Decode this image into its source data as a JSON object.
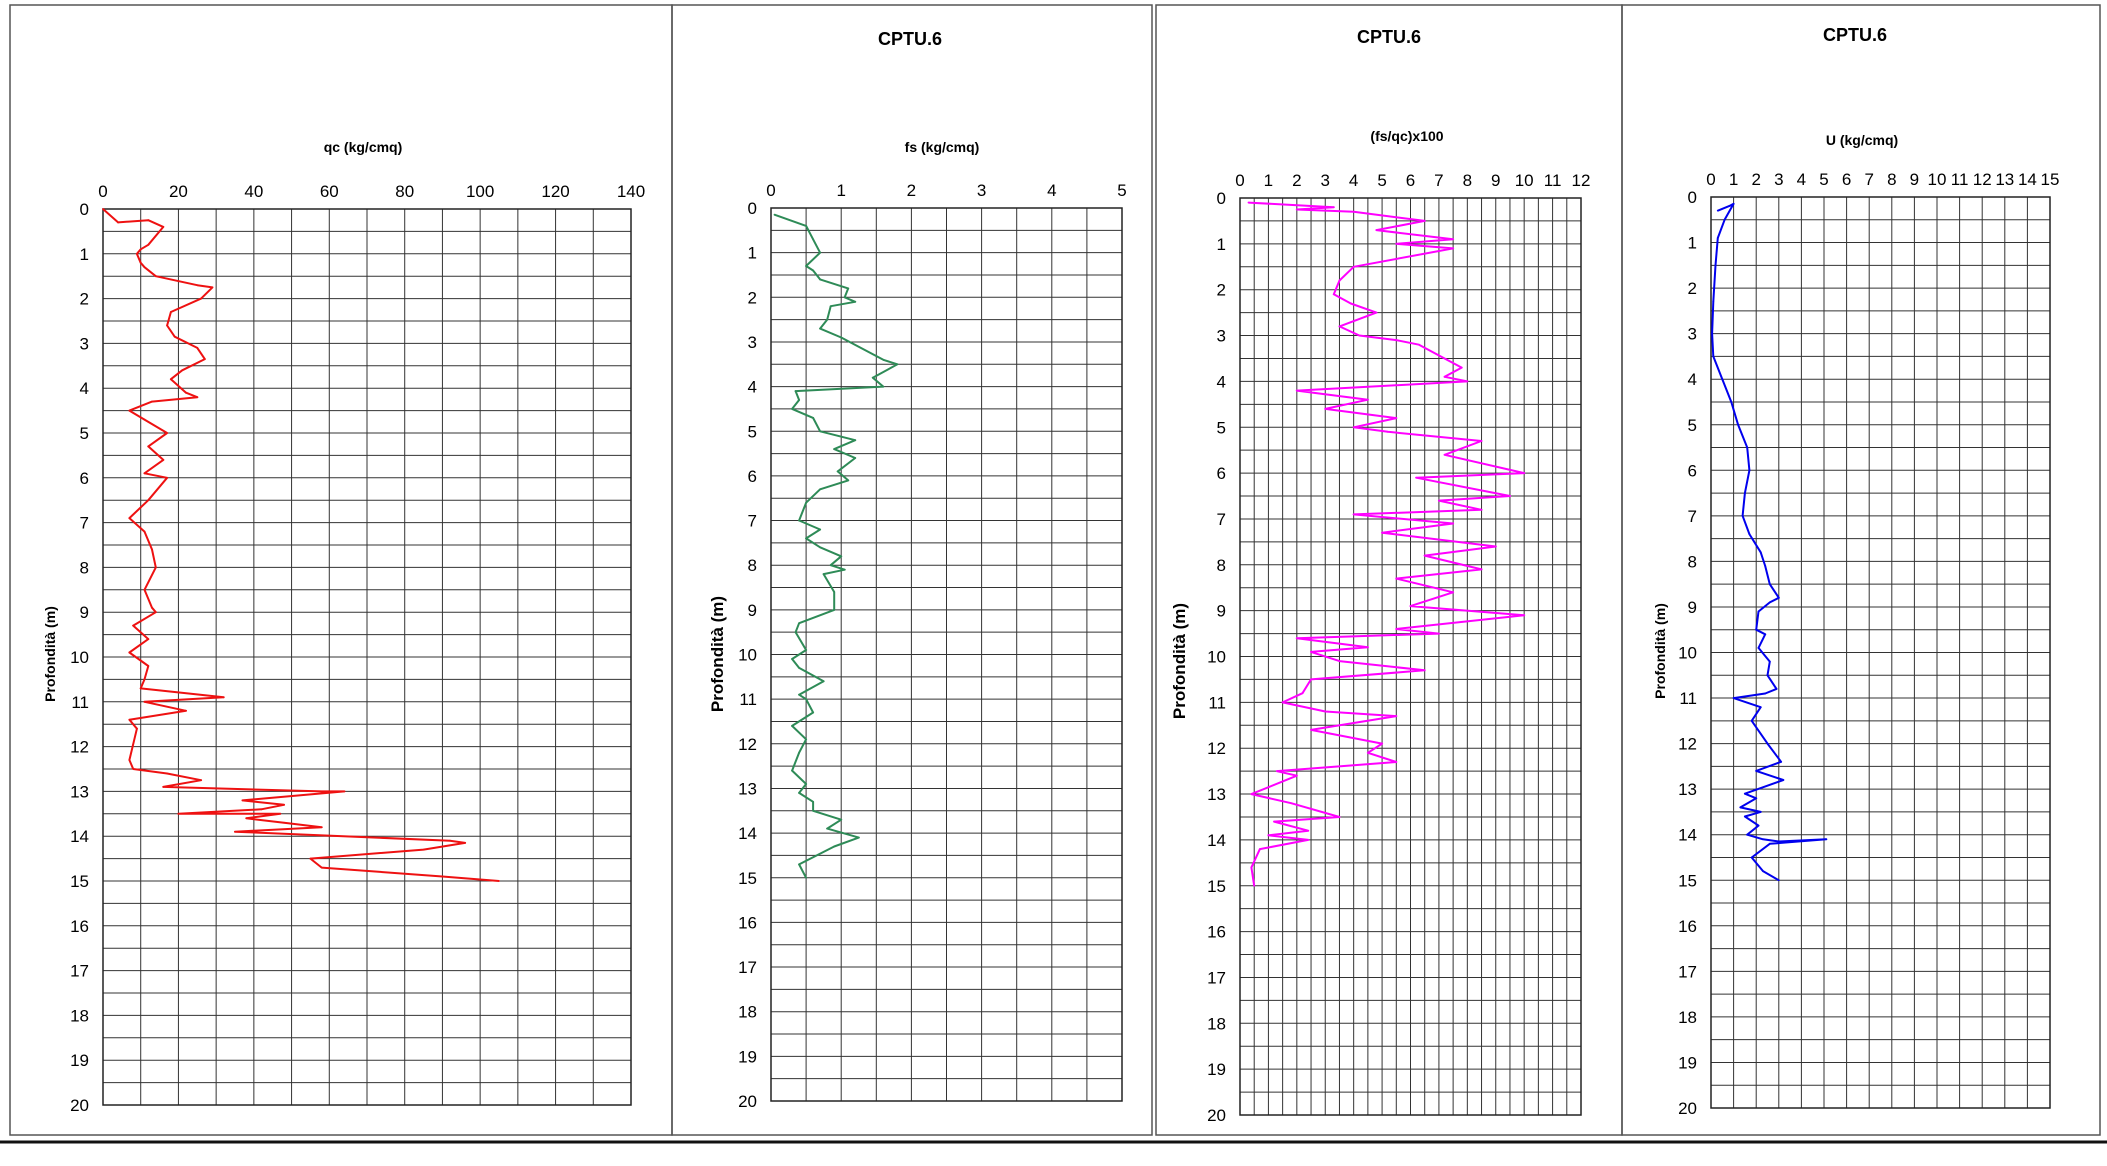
{
  "page_colors": {
    "background": "#ffffff",
    "grid": "#333333"
  },
  "chart_data": [
    {
      "type": "line",
      "title": "",
      "xlabel": "qc (kg/cmq)",
      "ylabel": "Profondità (m)",
      "xlim": [
        0,
        140
      ],
      "ylim": [
        20,
        0
      ],
      "x_ticks": [
        0,
        20,
        40,
        60,
        80,
        100,
        120,
        140
      ],
      "y_ticks": [
        0,
        1,
        2,
        3,
        4,
        5,
        6,
        7,
        8,
        9,
        10,
        11,
        12,
        13,
        14,
        15,
        16,
        17,
        18,
        19,
        20
      ],
      "grid": true,
      "color": "#ee1111",
      "series": [
        {
          "x": [
            0,
            4,
            12,
            16,
            12,
            10,
            9,
            10,
            11,
            14,
            25,
            29,
            26,
            18,
            17,
            19,
            25,
            27,
            21,
            18,
            22,
            25,
            13,
            7,
            11,
            17,
            12,
            16,
            11,
            17,
            12,
            7,
            11,
            13,
            14,
            11,
            13,
            14,
            8,
            12,
            7,
            12,
            11,
            10,
            32,
            11,
            22,
            7,
            9,
            7,
            8,
            17,
            26,
            16,
            58,
            64,
            37,
            48,
            42,
            20,
            47,
            38,
            48,
            58,
            35,
            92,
            96,
            85,
            55,
            58,
            90,
            105
          ],
          "y": [
            0,
            0.3,
            0.25,
            0.4,
            0.8,
            0.9,
            1.0,
            1.2,
            1.3,
            1.5,
            1.7,
            1.75,
            2.0,
            2.3,
            2.6,
            2.85,
            3.1,
            3.35,
            3.6,
            3.8,
            4.1,
            4.2,
            4.3,
            4.5,
            4.7,
            5.0,
            5.3,
            5.6,
            5.9,
            6.0,
            6.5,
            6.9,
            7.2,
            7.6,
            8.0,
            8.5,
            8.9,
            9.0,
            9.3,
            9.6,
            9.9,
            10.2,
            10.5,
            10.7,
            10.9,
            11.0,
            11.2,
            11.4,
            11.6,
            12.3,
            12.5,
            12.6,
            12.75,
            12.9,
            13.0,
            13.0,
            13.2,
            13.3,
            13.4,
            13.5,
            13.5,
            13.6,
            13.7,
            13.8,
            13.9,
            14.1,
            14.15,
            14.3,
            14.5,
            14.7,
            14.9,
            15.0
          ]
        }
      ]
    },
    {
      "type": "line",
      "title": "CPTU.6",
      "xlabel": "fs (kg/cmq)",
      "ylabel": "Profondità (m)",
      "xlim": [
        0,
        5
      ],
      "ylim": [
        20,
        0
      ],
      "x_ticks": [
        0,
        1,
        2,
        3,
        4,
        5
      ],
      "y_ticks": [
        0,
        1,
        2,
        3,
        4,
        5,
        6,
        7,
        8,
        9,
        10,
        11,
        12,
        13,
        14,
        15,
        16,
        17,
        18,
        19,
        20
      ],
      "grid": true,
      "color": "#2e8b57",
      "series": [
        {
          "x": [
            0.05,
            0.5,
            0.6,
            0.7,
            0.5,
            0.6,
            0.7,
            1.1,
            1.05,
            1.2,
            0.85,
            0.8,
            0.7,
            1.0,
            1.6,
            1.8,
            1.45,
            1.6,
            0.35,
            0.4,
            0.3,
            0.6,
            0.7,
            1.2,
            0.9,
            1.2,
            0.95,
            1.1,
            0.7,
            0.5,
            0.4,
            0.7,
            0.5,
            0.7,
            1.0,
            0.85,
            1.05,
            0.75,
            0.9,
            0.9,
            0.4,
            0.35,
            0.5,
            0.3,
            0.4,
            0.75,
            0.4,
            0.5,
            0.6,
            0.3,
            0.5,
            0.4,
            0.3,
            0.5,
            0.4,
            0.6,
            0.6,
            1.0,
            0.8,
            1.25,
            0.9,
            0.4,
            0.5
          ],
          "y": [
            0.15,
            0.4,
            0.7,
            1.0,
            1.3,
            1.4,
            1.6,
            1.8,
            2.0,
            2.1,
            2.2,
            2.5,
            2.7,
            2.9,
            3.4,
            3.5,
            3.8,
            4.0,
            4.1,
            4.3,
            4.5,
            4.7,
            5.0,
            5.2,
            5.4,
            5.6,
            5.9,
            6.1,
            6.3,
            6.6,
            7.0,
            7.2,
            7.4,
            7.6,
            7.8,
            8.0,
            8.1,
            8.2,
            8.6,
            9.0,
            9.3,
            9.5,
            9.9,
            10.1,
            10.3,
            10.6,
            10.9,
            11.0,
            11.3,
            11.6,
            11.9,
            12.2,
            12.6,
            12.9,
            13.1,
            13.3,
            13.5,
            13.7,
            13.9,
            14.1,
            14.3,
            14.7,
            15.0
          ]
        }
      ]
    },
    {
      "type": "line",
      "title": "CPTU.6",
      "xlabel": "(fs/qc)x100",
      "ylabel": "Profondità (m)",
      "xlim": [
        0,
        12
      ],
      "ylim": [
        20,
        0
      ],
      "x_ticks": [
        0,
        1,
        2,
        3,
        4,
        5,
        6,
        7,
        8,
        9,
        10,
        11,
        12
      ],
      "y_ticks": [
        0,
        1,
        2,
        3,
        4,
        5,
        6,
        7,
        8,
        9,
        10,
        11,
        12,
        13,
        14,
        15,
        16,
        17,
        18,
        19,
        20
      ],
      "grid": true,
      "color": "#ff00ff",
      "series": [
        {
          "x": [
            0.3,
            3.3,
            2.0,
            4.0,
            6.5,
            4.8,
            7.5,
            5.5,
            7.5,
            4.0,
            3.5,
            3.3,
            3.9,
            4.8,
            3.5,
            4.2,
            5.5,
            6.3,
            7.2,
            7.8,
            7.2,
            8.0,
            2.0,
            4.5,
            3.0,
            5.5,
            4.0,
            5.2,
            8.5,
            7.2,
            10.0,
            6.2,
            9.5,
            7.0,
            8.5,
            4.0,
            7.5,
            5.0,
            9.0,
            6.5,
            8.5,
            5.5,
            7.5,
            6.0,
            10.0,
            5.5,
            7.0,
            2.0,
            4.5,
            2.5,
            3.5,
            6.5,
            2.5,
            2.2,
            1.5,
            3.0,
            5.5,
            2.5,
            5.0,
            4.5,
            5.5,
            1.3,
            2.0,
            0.4,
            1.8,
            3.5,
            1.2,
            2.4,
            1.0,
            2.4,
            0.7,
            0.4,
            0.5
          ],
          "y": [
            0.1,
            0.2,
            0.25,
            0.3,
            0.5,
            0.7,
            0.9,
            1.0,
            1.1,
            1.5,
            1.8,
            2.1,
            2.3,
            2.5,
            2.8,
            3.0,
            3.1,
            3.2,
            3.5,
            3.7,
            3.9,
            4.0,
            4.2,
            4.4,
            4.6,
            4.8,
            5.0,
            5.1,
            5.3,
            5.6,
            6.0,
            6.1,
            6.5,
            6.6,
            6.8,
            6.9,
            7.1,
            7.3,
            7.6,
            7.8,
            8.1,
            8.3,
            8.6,
            8.9,
            9.1,
            9.4,
            9.5,
            9.6,
            9.8,
            9.9,
            10.1,
            10.3,
            10.5,
            10.8,
            11.0,
            11.2,
            11.3,
            11.6,
            11.9,
            12.1,
            12.3,
            12.5,
            12.6,
            13.0,
            13.2,
            13.5,
            13.6,
            13.8,
            13.9,
            14.0,
            14.2,
            14.6,
            15.0
          ]
        }
      ]
    },
    {
      "type": "line",
      "title": "CPTU.6",
      "xlabel": "U (kg/cmq)",
      "ylabel": "Profondità (m)",
      "xlim": [
        0,
        15
      ],
      "ylim": [
        20,
        0
      ],
      "x_ticks": [
        0,
        1,
        2,
        3,
        4,
        5,
        6,
        7,
        8,
        9,
        10,
        11,
        12,
        13,
        14,
        15
      ],
      "y_ticks": [
        0,
        1,
        2,
        3,
        4,
        5,
        6,
        7,
        8,
        9,
        10,
        11,
        12,
        13,
        14,
        15,
        16,
        17,
        18,
        19,
        20
      ],
      "grid": true,
      "color": "#0000ee",
      "series": [
        {
          "x": [
            0.3,
            0.8,
            1.0,
            0.6,
            0.3,
            0.2,
            0.1,
            0.05,
            0.1,
            0.5,
            0.9,
            1.2,
            1.6,
            1.7,
            1.5,
            1.4,
            1.7,
            2.2,
            2.4,
            2.6,
            3.0,
            2.6,
            2.1,
            2.0,
            2.4,
            2.1,
            2.6,
            2.5,
            2.9,
            2.4,
            1.0,
            2.2,
            1.8,
            2.5,
            3.1,
            2.0,
            3.2,
            1.5,
            2.0,
            1.3,
            2.2,
            1.5,
            2.1,
            1.6,
            2.3,
            3.0,
            5.1,
            2.6,
            1.8,
            2.3,
            3.0
          ],
          "y": [
            0.3,
            0.2,
            0.15,
            0.5,
            0.9,
            1.5,
            2.3,
            3.0,
            3.5,
            4.0,
            4.5,
            5.0,
            5.5,
            6.0,
            6.5,
            7.0,
            7.4,
            7.8,
            8.1,
            8.5,
            8.8,
            8.9,
            9.1,
            9.5,
            9.6,
            9.9,
            10.2,
            10.5,
            10.8,
            10.9,
            11.0,
            11.2,
            11.5,
            12.0,
            12.4,
            12.6,
            12.8,
            13.1,
            13.2,
            13.4,
            13.5,
            13.6,
            13.8,
            14.0,
            14.1,
            14.15,
            14.1,
            14.2,
            14.5,
            14.8,
            15.0
          ]
        }
      ]
    }
  ]
}
